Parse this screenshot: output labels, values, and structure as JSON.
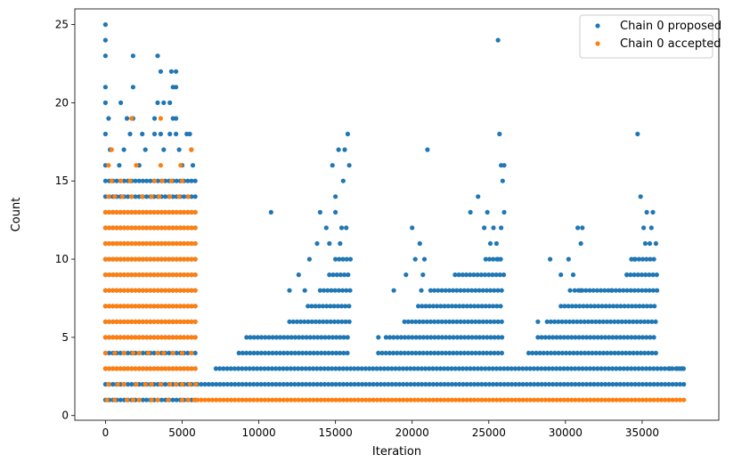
{
  "chart_data": {
    "type": "scatter",
    "title": "",
    "xlabel": "Iteration",
    "ylabel": "Count",
    "xlim": [
      -2000,
      40000
    ],
    "ylim": [
      -0.3,
      26
    ],
    "xticks": [
      0,
      5000,
      10000,
      15000,
      20000,
      25000,
      30000,
      35000
    ],
    "xtick_labels": [
      "0",
      "5000",
      "10000",
      "15000",
      "20000",
      "25000",
      "30000",
      "35000"
    ],
    "yticks": [
      0,
      5,
      10,
      15,
      20,
      25
    ],
    "ytick_labels": [
      "0",
      "5",
      "10",
      "15",
      "20",
      "25"
    ],
    "grid": false,
    "legend_position": "top-right",
    "series": [
      {
        "name": "Chain 0 proposed",
        "color": "#1f77b4",
        "marker": "circle",
        "bands": [
          {
            "x_range": [
              0,
              6000
            ],
            "y": [
              1,
              2,
              3,
              4,
              5,
              6,
              7,
              8,
              9,
              10,
              11,
              12,
              13,
              14,
              15
            ]
          },
          {
            "x_range": [
              6000,
              37800
            ],
            "y": [
              2
            ]
          },
          {
            "x_range": [
              7200,
              37800
            ],
            "y": [
              3
            ]
          },
          {
            "x_range": [
              8700,
              16000
            ],
            "y": [
              4
            ]
          },
          {
            "x_range": [
              17800,
              26000
            ],
            "y": [
              4
            ]
          },
          {
            "x_range": [
              27600,
              36000
            ],
            "y": [
              4
            ]
          },
          {
            "x_range": [
              9200,
              16000
            ],
            "y": [
              5
            ]
          },
          {
            "x_range": [
              18300,
              26000
            ],
            "y": [
              5
            ]
          },
          {
            "x_range": [
              28200,
              36000
            ],
            "y": [
              5
            ]
          },
          {
            "x_range": [
              12000,
              16000
            ],
            "y": [
              6
            ]
          },
          {
            "x_range": [
              19500,
              26000
            ],
            "y": [
              6
            ]
          },
          {
            "x_range": [
              28800,
              36000
            ],
            "y": [
              6
            ]
          },
          {
            "x_range": [
              13200,
              16000
            ],
            "y": [
              7
            ]
          },
          {
            "x_range": [
              20400,
              26000
            ],
            "y": [
              7
            ]
          },
          {
            "x_range": [
              29700,
              36000
            ],
            "y": [
              7
            ]
          },
          {
            "x_range": [
              14000,
              16000
            ],
            "y": [
              8
            ]
          },
          {
            "x_range": [
              21200,
              26000
            ],
            "y": [
              8
            ]
          },
          {
            "x_range": [
              30600,
              36000
            ],
            "y": [
              8
            ]
          },
          {
            "x_range": [
              14600,
              16000
            ],
            "y": [
              9
            ]
          },
          {
            "x_range": [
              22800,
              26000
            ],
            "y": [
              9
            ]
          },
          {
            "x_range": [
              34000,
              36000
            ],
            "y": [
              9
            ]
          },
          {
            "x_range": [
              15000,
              16000
            ],
            "y": [
              10
            ]
          },
          {
            "x_range": [
              24800,
              26000
            ],
            "y": [
              10
            ]
          },
          {
            "x_range": [
              34300,
              36000
            ],
            "y": [
              10
            ]
          }
        ],
        "points": [
          [
            0,
            25
          ],
          [
            0,
            24
          ],
          [
            0,
            23
          ],
          [
            0,
            21
          ],
          [
            0,
            20
          ],
          [
            200,
            19
          ],
          [
            0,
            18
          ],
          [
            300,
            17
          ],
          [
            0,
            16
          ],
          [
            1000,
            20
          ],
          [
            1400,
            19
          ],
          [
            1800,
            23
          ],
          [
            1800,
            21
          ],
          [
            1800,
            19
          ],
          [
            1600,
            18
          ],
          [
            1200,
            17
          ],
          [
            900,
            16
          ],
          [
            2400,
            18
          ],
          [
            2600,
            17
          ],
          [
            2200,
            16
          ],
          [
            3400,
            23
          ],
          [
            3600,
            22
          ],
          [
            3400,
            20
          ],
          [
            3800,
            20
          ],
          [
            3200,
            19
          ],
          [
            3200,
            18
          ],
          [
            3600,
            18
          ],
          [
            3800,
            17
          ],
          [
            4300,
            22
          ],
          [
            4600,
            22
          ],
          [
            4400,
            21
          ],
          [
            4600,
            21
          ],
          [
            4200,
            20
          ],
          [
            4400,
            19
          ],
          [
            4600,
            19
          ],
          [
            4800,
            17
          ],
          [
            4200,
            18
          ],
          [
            4600,
            18
          ],
          [
            5300,
            18
          ],
          [
            5500,
            18
          ],
          [
            5000,
            16
          ],
          [
            5600,
            17
          ],
          [
            5700,
            16
          ],
          [
            10800,
            13
          ],
          [
            12000,
            8
          ],
          [
            12600,
            9
          ],
          [
            13000,
            8
          ],
          [
            13300,
            10
          ],
          [
            13800,
            11
          ],
          [
            14000,
            13
          ],
          [
            14400,
            12
          ],
          [
            14600,
            11
          ],
          [
            14800,
            16
          ],
          [
            15000,
            14
          ],
          [
            15200,
            17
          ],
          [
            15500,
            15
          ],
          [
            15600,
            17
          ],
          [
            15800,
            18
          ],
          [
            15900,
            16
          ],
          [
            15000,
            13
          ],
          [
            15400,
            12
          ],
          [
            15700,
            12
          ],
          [
            15300,
            11
          ],
          [
            17800,
            5
          ],
          [
            18800,
            8
          ],
          [
            19600,
            9
          ],
          [
            20000,
            12
          ],
          [
            20200,
            10
          ],
          [
            20500,
            11
          ],
          [
            20700,
            9
          ],
          [
            20800,
            10
          ],
          [
            21000,
            17
          ],
          [
            20600,
            8
          ],
          [
            23800,
            13
          ],
          [
            24300,
            14
          ],
          [
            24700,
            12
          ],
          [
            24900,
            13
          ],
          [
            25100,
            11
          ],
          [
            25300,
            12
          ],
          [
            25500,
            11
          ],
          [
            25600,
            24
          ],
          [
            25700,
            18
          ],
          [
            25800,
            16
          ],
          [
            25900,
            15
          ],
          [
            26000,
            16
          ],
          [
            26000,
            13
          ],
          [
            25800,
            12
          ],
          [
            25600,
            10
          ],
          [
            28200,
            6
          ],
          [
            29000,
            10
          ],
          [
            29700,
            9
          ],
          [
            30200,
            10
          ],
          [
            30500,
            9
          ],
          [
            30800,
            12
          ],
          [
            31000,
            11
          ],
          [
            31100,
            12
          ],
          [
            30300,
            8
          ],
          [
            31000,
            8
          ],
          [
            33000,
            8
          ],
          [
            34000,
            9
          ],
          [
            34500,
            10
          ],
          [
            34700,
            18
          ],
          [
            34900,
            14
          ],
          [
            35100,
            12
          ],
          [
            35300,
            13
          ],
          [
            35500,
            11
          ],
          [
            35700,
            13
          ],
          [
            35900,
            11
          ],
          [
            35200,
            11
          ],
          [
            35600,
            12
          ],
          [
            36800,
            3
          ],
          [
            37300,
            3
          ],
          [
            37600,
            3
          ]
        ]
      },
      {
        "name": "Chain 0 accepted",
        "color": "#ff7f0e",
        "marker": "circle",
        "bands": [
          {
            "x_range": [
              0,
              6000
            ],
            "y": [
              3,
              5,
              6,
              7,
              8,
              9,
              10,
              11,
              12,
              13
            ]
          },
          {
            "x_range": [
              6000,
              37800
            ],
            "y": [
              1
            ]
          }
        ],
        "points": [
          [
            100,
            1
          ],
          [
            600,
            1
          ],
          [
            1400,
            1
          ],
          [
            1800,
            1
          ],
          [
            2200,
            1
          ],
          [
            3000,
            1
          ],
          [
            3400,
            1
          ],
          [
            4100,
            1
          ],
          [
            5000,
            1
          ],
          [
            5400,
            1
          ],
          [
            5800,
            1
          ],
          [
            200,
            2
          ],
          [
            800,
            2
          ],
          [
            1200,
            2
          ],
          [
            2000,
            2
          ],
          [
            2600,
            2
          ],
          [
            3000,
            2
          ],
          [
            3600,
            2
          ],
          [
            4200,
            2
          ],
          [
            4600,
            2
          ],
          [
            5000,
            2
          ],
          [
            5500,
            2
          ],
          [
            5900,
            2
          ],
          [
            0,
            4
          ],
          [
            600,
            4
          ],
          [
            1200,
            4
          ],
          [
            1800,
            4
          ],
          [
            2200,
            4
          ],
          [
            2800,
            4
          ],
          [
            3400,
            4
          ],
          [
            3800,
            4
          ],
          [
            4400,
            4
          ],
          [
            5000,
            4
          ],
          [
            5600,
            4
          ],
          [
            200,
            14
          ],
          [
            600,
            14
          ],
          [
            1100,
            14
          ],
          [
            1700,
            14
          ],
          [
            2400,
            14
          ],
          [
            3000,
            14
          ],
          [
            3500,
            14
          ],
          [
            4200,
            14
          ],
          [
            4800,
            14
          ],
          [
            5400,
            14
          ],
          [
            400,
            15
          ],
          [
            1000,
            15
          ],
          [
            1600,
            15
          ],
          [
            3200,
            15
          ],
          [
            3700,
            15
          ],
          [
            4300,
            15
          ],
          [
            5000,
            15
          ],
          [
            200,
            16
          ],
          [
            2000,
            16
          ],
          [
            3600,
            16
          ],
          [
            4900,
            16
          ],
          [
            400,
            17
          ],
          [
            5600,
            17
          ],
          [
            1700,
            19
          ],
          [
            3600,
            19
          ]
        ]
      }
    ]
  }
}
